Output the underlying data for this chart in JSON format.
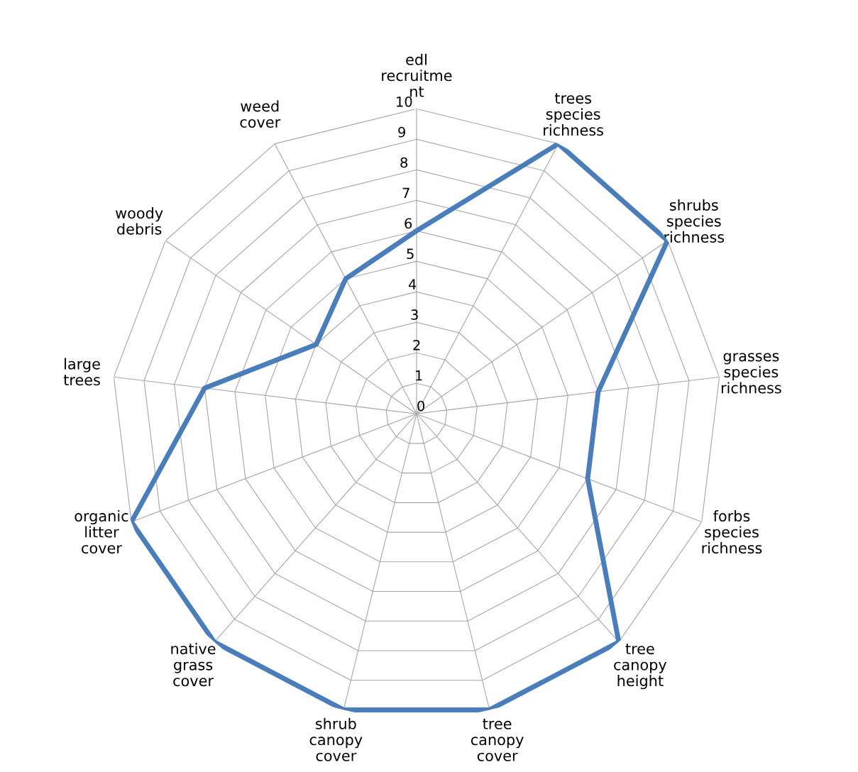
{
  "chart_data": {
    "type": "radar",
    "categories": [
      "edl\nrecruitme\nnt",
      "trees\nspecies\nrichness",
      "shrubs\nspecies\nrichness",
      "grasses\nspecies\nrichness",
      "forbs\nspecies\nrichness",
      "tree\ncanopy\nheight",
      "tree\ncanopy\ncover",
      "shrub\ncanopy\ncover",
      "native\ngrass\ncover",
      "organic\nlitter\ncover",
      "large\ntrees",
      "woody\ndebris",
      "weed\ncover"
    ],
    "series": [
      {
        "color": "#4a7ebb",
        "values": [
          6,
          10,
          10,
          6,
          6,
          10,
          10,
          10,
          10,
          10,
          7,
          4,
          5
        ]
      }
    ],
    "ylim": [
      0,
      10
    ],
    "yticks": [
      0,
      1,
      2,
      3,
      4,
      5,
      6,
      7,
      8,
      9,
      10
    ],
    "grid": true,
    "legend": false,
    "marker": "none",
    "line_style": "solid"
  }
}
